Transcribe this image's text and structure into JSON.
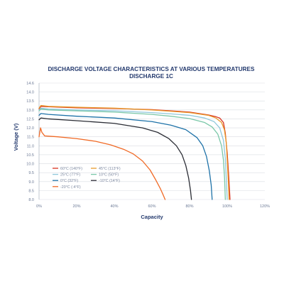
{
  "chart_data": {
    "type": "line",
    "title": "DISCHARGE VOLTAGE CHARACTERISTICS AT VARIOUS TEMPERATURES",
    "subtitle": "DISCHARGE 1C",
    "xlabel": "Capacity",
    "ylabel": "Voltage (V)",
    "xlim": [
      0,
      120
    ],
    "ylim": [
      8.0,
      14.6
    ],
    "x_ticks": [
      "0%",
      "20%",
      "40%",
      "60%",
      "80%",
      "100%",
      "120%"
    ],
    "x_tick_values": [
      0,
      20,
      40,
      60,
      80,
      100,
      120
    ],
    "y_ticks": [
      "8.0",
      "8.5",
      "9.0",
      "9.5",
      "10.0",
      "10.5",
      "11.0",
      "11.5",
      "12.0",
      "12.5",
      "13.0",
      "13.5",
      "14.0",
      "14.6"
    ],
    "y_tick_values": [
      8.0,
      8.5,
      9.0,
      9.5,
      10.0,
      10.5,
      11.0,
      11.5,
      12.0,
      12.5,
      13.0,
      13.5,
      14.0,
      14.6
    ],
    "grid": true,
    "legend_position": "bottom-left",
    "series": [
      {
        "name": "60°C (140°F)",
        "color": "#d9331f",
        "x": [
          0,
          1,
          5,
          20,
          40,
          60,
          80,
          90,
          94,
          96,
          98,
          99,
          100,
          100.8,
          101.5
        ],
        "y": [
          13.05,
          13.2,
          13.18,
          13.12,
          13.08,
          13.02,
          12.88,
          12.72,
          12.62,
          12.55,
          12.3,
          11.7,
          10.6,
          9.3,
          8.0
        ]
      },
      {
        "name": "45°C (113°F)",
        "color": "#e89a2c",
        "x": [
          0,
          1,
          5,
          20,
          40,
          60,
          80,
          90,
          94,
          97,
          98.5,
          99.5,
          100,
          100.6,
          101
        ],
        "y": [
          13.1,
          13.25,
          13.2,
          13.15,
          13.1,
          13.0,
          12.85,
          12.7,
          12.55,
          12.3,
          11.9,
          11.2,
          10.2,
          9.0,
          8.0
        ]
      },
      {
        "name": "25°C (77°F)",
        "color": "#8fc7da",
        "x": [
          0,
          1,
          5,
          20,
          40,
          60,
          70,
          80,
          88,
          93,
          96,
          98,
          99,
          99.5,
          100
        ],
        "y": [
          13.0,
          13.1,
          13.05,
          13.0,
          12.95,
          12.85,
          12.78,
          12.7,
          12.55,
          12.35,
          12.0,
          11.3,
          10.3,
          9.2,
          8.0
        ]
      },
      {
        "name": "10°C (50°F)",
        "color": "#7ac7a8",
        "x": [
          0,
          1,
          5,
          20,
          40,
          60,
          70,
          80,
          88,
          92,
          95,
          97,
          98,
          98.6,
          99
        ],
        "y": [
          12.95,
          13.05,
          13.0,
          12.95,
          12.88,
          12.75,
          12.65,
          12.52,
          12.3,
          12.05,
          11.65,
          11.0,
          10.2,
          9.2,
          8.0
        ]
      },
      {
        "name": "0°C (32°F)",
        "color": "#1e72a8",
        "x": [
          0,
          1,
          5,
          20,
          40,
          60,
          70,
          78,
          84,
          87,
          89,
          90.5,
          91.5,
          92
        ],
        "y": [
          12.7,
          12.8,
          12.75,
          12.65,
          12.55,
          12.35,
          12.15,
          11.9,
          11.45,
          11.0,
          10.4,
          9.6,
          8.8,
          8.0
        ]
      },
      {
        "name": "-10°C (14°F)",
        "color": "#2b2d35",
        "x": [
          0,
          1,
          5,
          20,
          40,
          55,
          63,
          69,
          73,
          76,
          78,
          79.5,
          80.5,
          81
        ],
        "y": [
          12.45,
          12.55,
          12.5,
          12.4,
          12.25,
          12.0,
          11.75,
          11.4,
          11.0,
          10.5,
          9.9,
          9.2,
          8.5,
          8.0
        ]
      },
      {
        "name": "-20°C (-4°F)",
        "color": "#f06a26",
        "x": [
          0,
          0.8,
          1.5,
          3,
          10,
          20,
          30,
          38,
          45,
          50,
          55,
          59,
          62,
          64.5,
          66,
          67
        ],
        "y": [
          11.5,
          12.0,
          11.75,
          11.55,
          11.5,
          11.4,
          11.25,
          11.05,
          10.8,
          10.55,
          10.15,
          9.65,
          9.1,
          8.6,
          8.25,
          8.0
        ]
      }
    ]
  }
}
